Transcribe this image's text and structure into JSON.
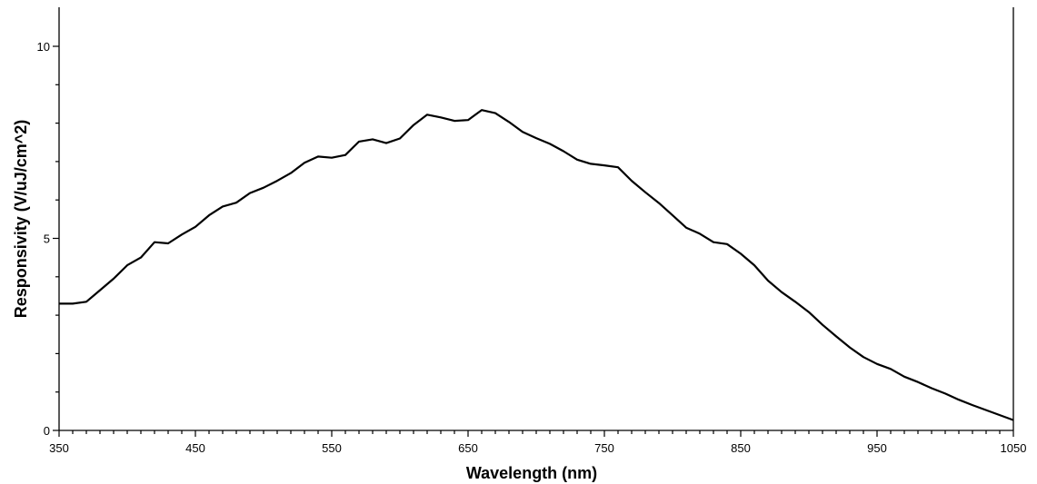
{
  "chart_data": {
    "type": "line",
    "xlabel": "Wavelength (nm)",
    "ylabel": "Responsivity (V/uJ/cm^2)",
    "xlim": [
      350,
      1050
    ],
    "ylim": [
      0,
      10
    ],
    "x_ticks": [
      350,
      450,
      550,
      650,
      750,
      850,
      950,
      1050
    ],
    "y_ticks": [
      0,
      5,
      10
    ],
    "x_minor_step": 10,
    "y_minor_step": 1,
    "grid": false,
    "series": [
      {
        "x": [
          350,
          360,
          370,
          380,
          390,
          400,
          410,
          420,
          430,
          440,
          450,
          460,
          470,
          480,
          490,
          500,
          510,
          520,
          530,
          540,
          550,
          560,
          570,
          580,
          590,
          600,
          610,
          620,
          630,
          640,
          650,
          660,
          670,
          680,
          690,
          700,
          710,
          720,
          730,
          740,
          750,
          760,
          770,
          780,
          790,
          800,
          810,
          820,
          830,
          840,
          850,
          860,
          870,
          880,
          890,
          900,
          910,
          920,
          930,
          940,
          950,
          960,
          970,
          980,
          990,
          1000,
          1010,
          1020,
          1030,
          1040,
          1050
        ],
        "y": [
          3.3,
          3.3,
          3.35,
          3.65,
          3.95,
          4.3,
          4.5,
          4.9,
          4.87,
          5.1,
          5.3,
          5.6,
          5.83,
          5.93,
          6.18,
          6.32,
          6.5,
          6.7,
          6.97,
          7.13,
          7.1,
          7.17,
          7.52,
          7.58,
          7.48,
          7.6,
          7.95,
          8.22,
          8.15,
          8.06,
          8.08,
          8.34,
          8.26,
          8.03,
          7.77,
          7.61,
          7.46,
          7.27,
          7.05,
          6.94,
          6.9,
          6.85,
          6.5,
          6.2,
          5.92,
          5.6,
          5.28,
          5.12,
          4.9,
          4.85,
          4.6,
          4.3,
          3.9,
          3.6,
          3.35,
          3.08,
          2.75,
          2.45,
          2.16,
          1.91,
          1.73,
          1.6,
          1.4,
          1.26,
          1.1,
          0.96,
          0.8,
          0.66,
          0.53,
          0.4,
          0.27
        ]
      }
    ]
  }
}
